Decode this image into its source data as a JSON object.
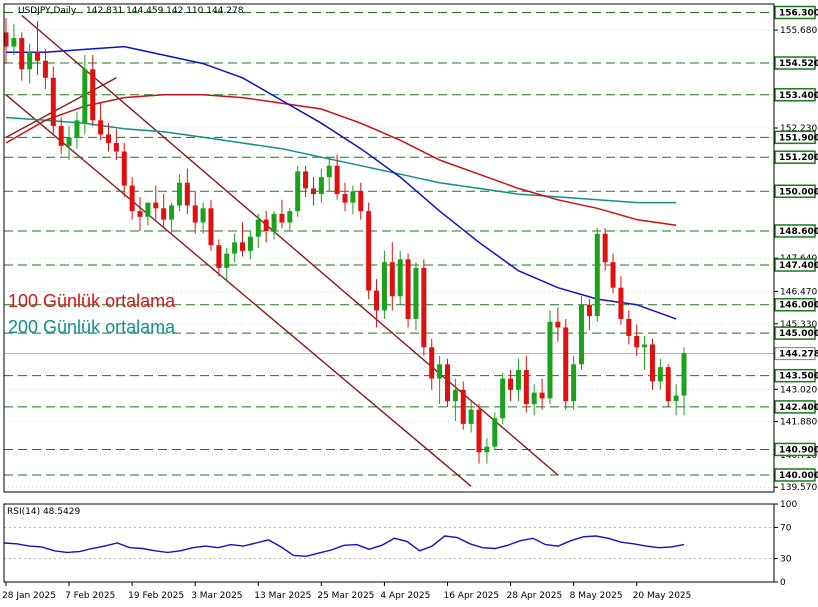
{
  "header": {
    "symbol": "USDJPY,Daily",
    "ohlc": "142.831 144.459 142.110 144.278"
  },
  "colors": {
    "bull": "#1aa31a",
    "bear": "#e01010",
    "ma50": "#1010d0",
    "ma100": "#d01010",
    "ma200": "#10908a",
    "level_line": "#1a7a1a",
    "level_box": "#1a7a1a",
    "channel": "#8b1a1a",
    "rsi": "#1010d0",
    "grid": "#c0c0c0"
  },
  "annotations": [
    {
      "text": "100 Günlük ortalama",
      "color": "#e01010"
    },
    {
      "text": "200 Günlük ortalama",
      "color": "#10908a"
    }
  ],
  "chart_data": [
    {
      "type": "candlestick",
      "ylim": [
        139.4,
        156.6
      ],
      "price_ticks": [
        "155.680",
        "154.520",
        "153.400",
        "152.230",
        "151.900",
        "151.200",
        "150.000",
        "148.600",
        "147.640",
        "147.400",
        "146.470",
        "146.000",
        "145.330",
        "145.000",
        "143.500",
        "143.020",
        "142.400",
        "141.880",
        "140.900",
        "140.710",
        "140.000",
        "139.570"
      ],
      "levels": [
        "156.300",
        "154.520",
        "153.400",
        "151.900",
        "151.200",
        "150.000",
        "148.600",
        "147.400",
        "146.000",
        "145.000",
        "143.500",
        "142.400",
        "140.900",
        "140.000"
      ],
      "current_price": "144.278",
      "x_labels": [
        "28 Jan 2025",
        "7 Feb 2025",
        "19 Feb 2025",
        "3 Mar 2025",
        "13 Mar 2025",
        "25 Mar 2025",
        "4 Apr 2025",
        "16 Apr 2025",
        "28 Apr 2025",
        "8 May 2025",
        "20 May 2025"
      ],
      "x_label_bar_index": [
        0,
        8,
        16,
        24,
        32,
        40,
        48,
        56,
        64,
        72,
        80
      ],
      "candles": [
        [
          155.6,
          156.1,
          154.5,
          155.1
        ],
        [
          155.1,
          155.9,
          154.8,
          155.4
        ],
        [
          155.4,
          155.6,
          153.9,
          154.3
        ],
        [
          154.3,
          155.2,
          153.8,
          154.9
        ],
        [
          154.9,
          156.0,
          154.1,
          154.6
        ],
        [
          154.6,
          155.0,
          153.6,
          154.0
        ],
        [
          154.0,
          154.4,
          152.0,
          152.3
        ],
        [
          152.3,
          152.6,
          151.3,
          151.6
        ],
        [
          151.6,
          152.3,
          151.1,
          151.9
        ],
        [
          151.9,
          152.8,
          151.5,
          152.5
        ],
        [
          152.4,
          154.8,
          152.0,
          154.3
        ],
        [
          154.3,
          154.8,
          152.3,
          152.5
        ],
        [
          152.5,
          153.1,
          151.8,
          152.0
        ],
        [
          152.0,
          152.4,
          151.4,
          151.7
        ],
        [
          151.7,
          152.2,
          151.1,
          151.4
        ],
        [
          151.4,
          151.7,
          149.8,
          150.2
        ],
        [
          150.2,
          150.5,
          149.0,
          149.3
        ],
        [
          149.3,
          149.8,
          148.6,
          149.1
        ],
        [
          149.1,
          149.6,
          148.8,
          149.6
        ],
        [
          149.6,
          150.2,
          149.0,
          149.4
        ],
        [
          149.4,
          149.9,
          148.7,
          149.0
        ],
        [
          149.0,
          149.6,
          148.5,
          149.5
        ],
        [
          149.5,
          150.6,
          149.3,
          150.3
        ],
        [
          150.3,
          150.8,
          149.2,
          149.5
        ],
        [
          149.5,
          150.0,
          148.5,
          148.9
        ],
        [
          148.9,
          149.6,
          148.5,
          149.4
        ],
        [
          149.4,
          149.7,
          147.9,
          148.1
        ],
        [
          148.1,
          148.3,
          147.0,
          147.3
        ],
        [
          147.3,
          148.0,
          146.8,
          147.8
        ],
        [
          147.8,
          148.5,
          147.5,
          148.2
        ],
        [
          148.2,
          148.9,
          147.7,
          147.9
        ],
        [
          147.9,
          148.6,
          147.6,
          148.4
        ],
        [
          148.4,
          149.2,
          148.0,
          149.0
        ],
        [
          149.0,
          149.3,
          148.2,
          148.6
        ],
        [
          148.6,
          149.3,
          148.3,
          149.2
        ],
        [
          149.2,
          149.7,
          148.7,
          148.9
        ],
        [
          148.9,
          149.4,
          148.6,
          149.3
        ],
        [
          149.3,
          150.9,
          149.1,
          150.7
        ],
        [
          150.7,
          150.9,
          149.8,
          150.1
        ],
        [
          150.1,
          150.5,
          149.5,
          149.9
        ],
        [
          149.9,
          150.8,
          149.6,
          150.5
        ],
        [
          150.5,
          151.2,
          150.0,
          150.9
        ],
        [
          150.9,
          151.3,
          149.7,
          149.9
        ],
        [
          149.9,
          150.3,
          149.3,
          149.6
        ],
        [
          149.6,
          150.2,
          149.2,
          150.0
        ],
        [
          150.0,
          150.3,
          149.0,
          149.3
        ],
        [
          149.3,
          149.6,
          146.2,
          146.5
        ],
        [
          146.5,
          146.9,
          145.2,
          145.8
        ],
        [
          145.8,
          147.9,
          145.5,
          147.5
        ],
        [
          147.5,
          148.2,
          145.8,
          146.3
        ],
        [
          146.3,
          147.9,
          146.0,
          147.6
        ],
        [
          147.6,
          147.8,
          145.2,
          145.5
        ],
        [
          145.5,
          147.5,
          145.1,
          147.3
        ],
        [
          147.3,
          147.6,
          144.2,
          144.5
        ],
        [
          144.5,
          144.8,
          143.0,
          143.4
        ],
        [
          143.4,
          144.2,
          142.5,
          143.9
        ],
        [
          143.9,
          144.1,
          142.4,
          142.6
        ],
        [
          142.6,
          143.4,
          141.9,
          143.0
        ],
        [
          143.0,
          143.3,
          141.6,
          141.8
        ],
        [
          141.8,
          142.6,
          141.5,
          142.3
        ],
        [
          142.3,
          142.5,
          140.4,
          140.8
        ],
        [
          140.8,
          141.3,
          140.4,
          141.0
        ],
        [
          141.0,
          142.2,
          140.9,
          142.0
        ],
        [
          142.0,
          143.6,
          141.8,
          143.4
        ],
        [
          143.4,
          143.7,
          142.6,
          143.0
        ],
        [
          143.0,
          144.1,
          142.6,
          143.7
        ],
        [
          143.7,
          144.2,
          142.2,
          142.5
        ],
        [
          142.5,
          143.2,
          142.1,
          142.9
        ],
        [
          142.9,
          143.4,
          142.3,
          142.7
        ],
        [
          142.7,
          145.8,
          142.5,
          145.4
        ],
        [
          145.4,
          145.9,
          144.7,
          145.2
        ],
        [
          145.2,
          145.5,
          142.3,
          142.6
        ],
        [
          142.6,
          144.2,
          142.3,
          143.9
        ],
        [
          143.9,
          146.3,
          143.7,
          146.0
        ],
        [
          146.0,
          146.2,
          145.1,
          145.6
        ],
        [
          145.6,
          148.7,
          145.4,
          148.5
        ],
        [
          148.5,
          148.7,
          147.2,
          147.5
        ],
        [
          147.5,
          147.8,
          146.4,
          146.6
        ],
        [
          146.6,
          147.0,
          145.3,
          145.5
        ],
        [
          145.5,
          145.8,
          144.6,
          144.9
        ],
        [
          144.9,
          145.3,
          144.2,
          144.5
        ],
        [
          144.5,
          144.9,
          143.7,
          144.6
        ],
        [
          144.6,
          144.8,
          143.0,
          143.3
        ],
        [
          143.3,
          144.1,
          143.0,
          143.8
        ],
        [
          143.8,
          143.9,
          142.4,
          142.6
        ],
        [
          142.6,
          143.2,
          142.1,
          142.8
        ],
        [
          142.8,
          144.5,
          142.1,
          144.3
        ]
      ],
      "ma50": [
        [
          0,
          154.9
        ],
        [
          5,
          154.9
        ],
        [
          10,
          155.0
        ],
        [
          15,
          155.1
        ],
        [
          20,
          154.8
        ],
        [
          25,
          154.5
        ],
        [
          30,
          154.0
        ],
        [
          35,
          153.2
        ],
        [
          40,
          152.4
        ],
        [
          45,
          151.5
        ],
        [
          50,
          150.5
        ],
        [
          55,
          149.3
        ],
        [
          60,
          148.2
        ],
        [
          65,
          147.2
        ],
        [
          70,
          146.6
        ],
        [
          75,
          146.2
        ],
        [
          80,
          146.0
        ],
        [
          85,
          145.5
        ]
      ],
      "ma100": [
        [
          0,
          151.7
        ],
        [
          5,
          152.5
        ],
        [
          10,
          153.0
        ],
        [
          15,
          153.3
        ],
        [
          20,
          153.4
        ],
        [
          25,
          153.4
        ],
        [
          30,
          153.3
        ],
        [
          35,
          153.1
        ],
        [
          40,
          152.9
        ],
        [
          45,
          152.4
        ],
        [
          50,
          151.8
        ],
        [
          55,
          151.1
        ],
        [
          60,
          150.6
        ],
        [
          65,
          150.1
        ],
        [
          70,
          149.7
        ],
        [
          75,
          149.4
        ],
        [
          80,
          149.0
        ],
        [
          85,
          148.8
        ]
      ],
      "ma200": [
        [
          0,
          152.6
        ],
        [
          5,
          152.5
        ],
        [
          10,
          152.4
        ],
        [
          15,
          152.2
        ],
        [
          20,
          152.1
        ],
        [
          25,
          151.9
        ],
        [
          30,
          151.7
        ],
        [
          35,
          151.5
        ],
        [
          40,
          151.2
        ],
        [
          45,
          150.9
        ],
        [
          50,
          150.6
        ],
        [
          55,
          150.3
        ],
        [
          60,
          150.1
        ],
        [
          65,
          149.9
        ],
        [
          70,
          149.8
        ],
        [
          75,
          149.7
        ],
        [
          80,
          149.6
        ],
        [
          85,
          149.6
        ]
      ],
      "channel_upper": [
        [
          2,
          156.2
        ],
        [
          70,
          140.0
        ]
      ],
      "channel_lower": [
        [
          0,
          153.4
        ],
        [
          59,
          139.6
        ]
      ],
      "channel_cross": [
        [
          0,
          151.9
        ],
        [
          14,
          154.0
        ]
      ]
    },
    {
      "type": "line",
      "title": "RSI(14) 48.5429",
      "ylim": [
        0,
        100
      ],
      "ticks": [
        "100",
        "70",
        "30",
        "0"
      ],
      "levels": [
        70,
        30
      ],
      "values": [
        [
          0,
          50
        ],
        [
          3,
          49
        ],
        [
          6,
          46
        ],
        [
          9,
          45
        ],
        [
          12,
          40
        ],
        [
          15,
          38
        ],
        [
          18,
          39
        ],
        [
          21,
          43
        ],
        [
          24,
          46
        ],
        [
          27,
          50
        ],
        [
          30,
          44
        ],
        [
          33,
          43
        ],
        [
          36,
          40
        ],
        [
          39,
          38
        ],
        [
          42,
          40
        ],
        [
          45,
          44
        ],
        [
          48,
          46
        ],
        [
          51,
          44
        ],
        [
          54,
          48
        ],
        [
          57,
          46
        ],
        [
          60,
          50
        ],
        [
          63,
          54
        ],
        [
          66,
          45
        ],
        [
          69,
          34
        ],
        [
          72,
          33
        ],
        [
          75,
          37
        ],
        [
          78,
          41
        ],
        [
          81,
          47
        ],
        [
          84,
          48
        ],
        [
          87,
          42
        ],
        [
          90,
          47
        ],
        [
          93,
          56
        ],
        [
          96,
          52
        ],
        [
          99,
          40
        ],
        [
          102,
          46
        ],
        [
          105,
          59
        ],
        [
          108,
          57
        ],
        [
          111,
          49
        ],
        [
          114,
          44
        ],
        [
          117,
          43
        ],
        [
          120,
          47
        ],
        [
          123,
          53
        ],
        [
          126,
          56
        ],
        [
          129,
          48
        ],
        [
          132,
          46
        ],
        [
          135,
          53
        ],
        [
          138,
          58
        ],
        [
          141,
          59
        ],
        [
          144,
          56
        ],
        [
          147,
          51
        ],
        [
          150,
          49
        ],
        [
          153,
          46
        ],
        [
          156,
          44
        ],
        [
          159,
          45
        ],
        [
          162,
          48
        ]
      ]
    }
  ]
}
